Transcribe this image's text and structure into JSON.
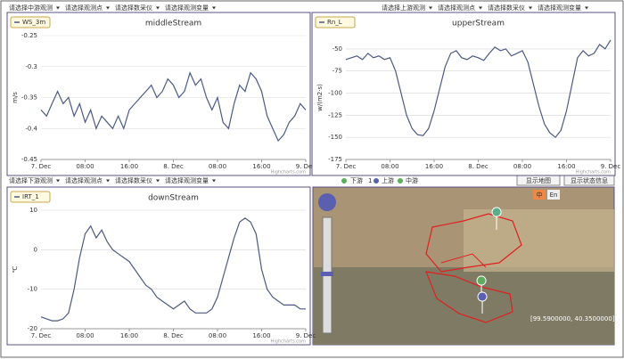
{
  "dropdowns": {
    "top_left": [
      "请选择中游观测",
      "请选择观测点",
      "请选择数采仪",
      "请选择观测变量"
    ],
    "top_right": [
      "请选择上游观测",
      "请选择观测点",
      "请选择数采仪",
      "请选择观测变量"
    ],
    "bottom_left": [
      "请选择下游观测",
      "请选择观测点",
      "请选择数采仪",
      "请选择观测变量"
    ]
  },
  "map": {
    "legend": [
      "下游",
      "1",
      "上游",
      "中游"
    ],
    "buttons": [
      "显示地图",
      "显示状态信息"
    ],
    "lang": [
      "中",
      "En"
    ],
    "coordinates": "[99.5900000, 40.3500000]",
    "credit": "Highcharts.com"
  },
  "chart_data": [
    {
      "type": "line",
      "title": "middleStream",
      "y_label": "m/s",
      "x": [
        0,
        1,
        2,
        3,
        4,
        5,
        6,
        7,
        8,
        9,
        10,
        11,
        12,
        13,
        14,
        15,
        16,
        17,
        18,
        19,
        20,
        21,
        22,
        23,
        24,
        25,
        26,
        27,
        28,
        29,
        30,
        31,
        32,
        33,
        34,
        35,
        36,
        37,
        38,
        39,
        40,
        41,
        42,
        43,
        44,
        45,
        46,
        47,
        48
      ],
      "xlim": [
        0,
        48
      ],
      "xticks": [
        {
          "value": 0,
          "label": "7. Dec"
        },
        {
          "value": 8,
          "label": "08:00"
        },
        {
          "value": 16,
          "label": "16:00"
        },
        {
          "value": 24,
          "label": "8. Dec"
        },
        {
          "value": 32,
          "label": "08:00"
        },
        {
          "value": 40,
          "label": "16:00"
        },
        {
          "value": 48,
          "label": "9. Dec"
        }
      ],
      "ylim": [
        -0.45,
        -0.25
      ],
      "yticks": [
        -0.45,
        -0.4,
        -0.35,
        -0.3,
        -0.25
      ],
      "grid": true,
      "series": [
        {
          "name": "WS_3m",
          "color": "#4c5a82",
          "values": [
            -0.37,
            -0.38,
            -0.36,
            -0.34,
            -0.36,
            -0.35,
            -0.38,
            -0.36,
            -0.39,
            -0.37,
            -0.4,
            -0.38,
            -0.39,
            -0.4,
            -0.38,
            -0.4,
            -0.37,
            -0.36,
            -0.35,
            -0.34,
            -0.33,
            -0.35,
            -0.34,
            -0.32,
            -0.33,
            -0.35,
            -0.34,
            -0.31,
            -0.33,
            -0.32,
            -0.35,
            -0.37,
            -0.35,
            -0.39,
            -0.4,
            -0.36,
            -0.33,
            -0.34,
            -0.31,
            -0.32,
            -0.34,
            -0.38,
            -0.4,
            -0.42,
            -0.41,
            -0.39,
            -0.38,
            -0.36,
            -0.37
          ]
        }
      ]
    },
    {
      "type": "line",
      "title": "upperStream",
      "y_label": "w/(m2·s)",
      "x": [
        0,
        1,
        2,
        3,
        4,
        5,
        6,
        7,
        8,
        9,
        10,
        11,
        12,
        13,
        14,
        15,
        16,
        17,
        18,
        19,
        20,
        21,
        22,
        23,
        24,
        25,
        26,
        27,
        28,
        29,
        30,
        31,
        32,
        33,
        34,
        35,
        36,
        37,
        38,
        39,
        40,
        41,
        42,
        43,
        44,
        45,
        46,
        47,
        48
      ],
      "xlim": [
        0,
        48
      ],
      "xticks": [
        {
          "value": 0,
          "label": "7. Dec"
        },
        {
          "value": 8,
          "label": "08:00"
        },
        {
          "value": 16,
          "label": "16:00"
        },
        {
          "value": 24,
          "label": "8. Dec"
        },
        {
          "value": 32,
          "label": "08:00"
        },
        {
          "value": 40,
          "label": "16:00"
        },
        {
          "value": 48,
          "label": "9. Dec"
        }
      ],
      "ylim": [
        -175,
        -35
      ],
      "yticks": [
        -175,
        -150,
        -125,
        -100,
        -75,
        -50
      ],
      "grid": true,
      "series": [
        {
          "name": "Rn_L",
          "color": "#4c5a82",
          "values": [
            -62,
            -60,
            -58,
            -62,
            -55,
            -60,
            -58,
            -62,
            -60,
            -75,
            -100,
            -125,
            -140,
            -147,
            -148,
            -140,
            -120,
            -95,
            -70,
            -55,
            -52,
            -60,
            -62,
            -58,
            -60,
            -63,
            -55,
            -48,
            -52,
            -50,
            -58,
            -55,
            -52,
            -65,
            -90,
            -115,
            -135,
            -145,
            -150,
            -142,
            -120,
            -90,
            -60,
            -52,
            -58,
            -55,
            -45,
            -50,
            -40
          ]
        }
      ]
    },
    {
      "type": "line",
      "title": "downStream",
      "y_label": "℃",
      "x": [
        0,
        1,
        2,
        3,
        4,
        5,
        6,
        7,
        8,
        9,
        10,
        11,
        12,
        13,
        14,
        15,
        16,
        17,
        18,
        19,
        20,
        21,
        22,
        23,
        24,
        25,
        26,
        27,
        28,
        29,
        30,
        31,
        32,
        33,
        34,
        35,
        36,
        37,
        38,
        39,
        40,
        41,
        42,
        43,
        44,
        45,
        46,
        47,
        48
      ],
      "xlim": [
        0,
        48
      ],
      "xticks": [
        {
          "value": 0,
          "label": "7. Dec"
        },
        {
          "value": 8,
          "label": "08:00"
        },
        {
          "value": 16,
          "label": "16:00"
        },
        {
          "value": 24,
          "label": "8. Dec"
        },
        {
          "value": 32,
          "label": "08:00"
        },
        {
          "value": 40,
          "label": "16:00"
        },
        {
          "value": 48,
          "label": "9. Dec"
        }
      ],
      "ylim": [
        -20,
        10
      ],
      "yticks": [
        -20,
        -10,
        0,
        10
      ],
      "grid": true,
      "series": [
        {
          "name": "IRT_1",
          "color": "#4c5a82",
          "values": [
            -17,
            -17.5,
            -18,
            -18,
            -17.5,
            -16,
            -10,
            -2,
            4,
            6,
            3,
            5,
            2,
            0,
            -1,
            -2,
            -3,
            -5,
            -7,
            -9,
            -10,
            -12,
            -13,
            -14,
            -15,
            -14,
            -13,
            -15,
            -16,
            -16,
            -16,
            -15,
            -12,
            -7,
            -2,
            3,
            7,
            8,
            7,
            4,
            -5,
            -10,
            -12,
            -13,
            -14,
            -14,
            -14,
            -15,
            -15
          ]
        }
      ]
    }
  ]
}
